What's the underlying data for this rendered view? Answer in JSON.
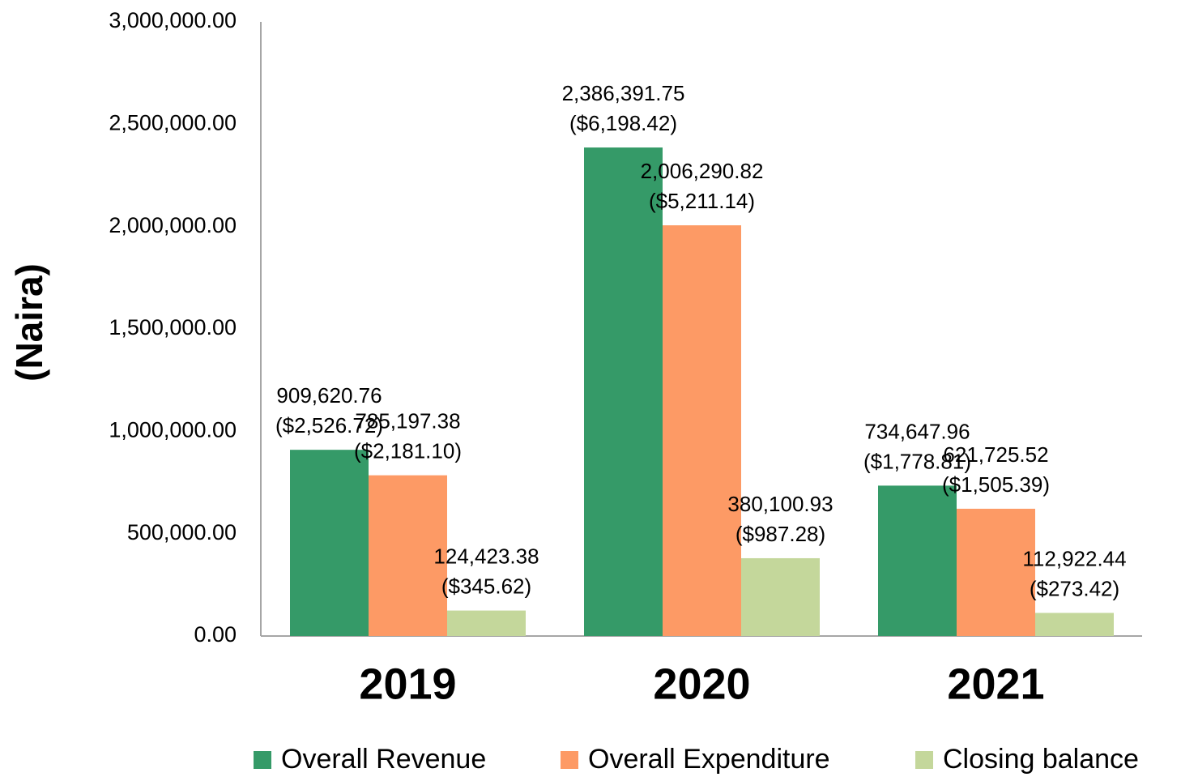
{
  "chart_data": {
    "type": "bar",
    "y_label": "(Naira)",
    "categories": [
      "2019",
      "2020",
      "2021"
    ],
    "series": [
      {
        "name": "Overall Revenue",
        "color": "#359a68",
        "values": [
          909620.76,
          2386391.75,
          734647.96
        ],
        "value_labels": [
          "909,620.76",
          "2,386,391.75",
          "734,647.96"
        ],
        "usd_labels": [
          "($2,526.72)",
          "($6,198.42)",
          "($1,778.81)"
        ]
      },
      {
        "name": "Overall Expenditure",
        "color": "#fd9a65",
        "values": [
          785197.38,
          2006290.82,
          621725.52
        ],
        "value_labels": [
          "785,197.38",
          "2,006,290.82",
          "621,725.52"
        ],
        "usd_labels": [
          "($2,181.10)",
          "($5,211.14)",
          "($1,505.39)"
        ]
      },
      {
        "name": "Closing balance",
        "color": "#c4d79b",
        "values": [
          124423.38,
          380100.93,
          112922.44
        ],
        "value_labels": [
          "124,423.38",
          "380,100.93",
          "112,922.44"
        ],
        "usd_labels": [
          "($345.62)",
          "($987.28)",
          "($273.42)"
        ]
      }
    ],
    "ylim": [
      0,
      3000000
    ],
    "yticks": [
      {
        "value": 0,
        "label": "0.00"
      },
      {
        "value": 500000,
        "label": "500,000.00"
      },
      {
        "value": 1000000,
        "label": "1,000,000.00"
      },
      {
        "value": 1500000,
        "label": "1,500,000.00"
      },
      {
        "value": 2000000,
        "label": "2,000,000.00"
      },
      {
        "value": 2500000,
        "label": "2,500,000.00"
      },
      {
        "value": 3000000,
        "label": "3,000,000.00"
      }
    ],
    "grid": false,
    "legend": "bottom"
  }
}
